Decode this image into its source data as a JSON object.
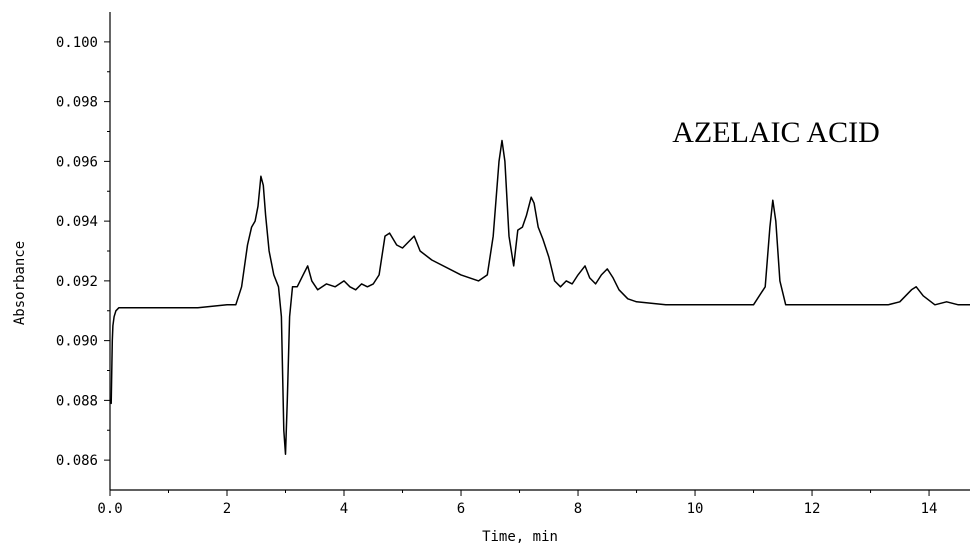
{
  "chart_data": {
    "type": "line",
    "title": "",
    "xlabel": "Time, min",
    "ylabel": "Absorbance",
    "annotation": "AZELAIC ACID",
    "xlim": [
      0.0,
      14.7
    ],
    "ylim": [
      0.085,
      0.101
    ],
    "x_ticks": [
      0,
      2,
      4,
      6,
      8,
      10,
      12,
      14
    ],
    "x_tick_labels": [
      "0.0",
      "2",
      "4",
      "6",
      "8",
      "10",
      "12",
      "14"
    ],
    "y_ticks": [
      0.086,
      0.088,
      0.09,
      0.092,
      0.094,
      0.096,
      0.098,
      0.1
    ],
    "y_tick_labels": [
      "0.086",
      "0.088",
      "0.090",
      "0.092",
      "0.094",
      "0.096",
      "0.098",
      "0.100"
    ],
    "grid": false,
    "line_color": "#000000",
    "series": [
      {
        "x": [
          0.0,
          0.02,
          0.04,
          0.05,
          0.07,
          0.1,
          0.15,
          0.25,
          0.5,
          1.0,
          1.5,
          2.0,
          2.15,
          2.25,
          2.35,
          2.42,
          2.48,
          2.53,
          2.58,
          2.62,
          2.66,
          2.72,
          2.8,
          2.88,
          2.93,
          2.97,
          3.0,
          3.03,
          3.07,
          3.12,
          3.2,
          3.3,
          3.38,
          3.45,
          3.55,
          3.7,
          3.85,
          4.0,
          4.1,
          4.2,
          4.3,
          4.4,
          4.5,
          4.6,
          4.7,
          4.78,
          4.9,
          5.0,
          5.1,
          5.2,
          5.3,
          5.5,
          6.0,
          6.3,
          6.45,
          6.55,
          6.65,
          6.7,
          6.75,
          6.82,
          6.9,
          6.97,
          7.05,
          7.12,
          7.2,
          7.25,
          7.32,
          7.4,
          7.5,
          7.6,
          7.7,
          7.8,
          7.9,
          8.0,
          8.12,
          8.2,
          8.3,
          8.4,
          8.5,
          8.6,
          8.7,
          8.85,
          9.0,
          9.5,
          10.0,
          10.5,
          11.0,
          11.2,
          11.28,
          11.33,
          11.38,
          11.45,
          11.55,
          11.7,
          12.0,
          12.5,
          13.0,
          13.3,
          13.5,
          13.7,
          13.78,
          13.9,
          14.1,
          14.3,
          14.5,
          14.7
        ],
        "y": [
          0.088,
          0.0879,
          0.09,
          0.0905,
          0.0908,
          0.091,
          0.0911,
          0.0911,
          0.0911,
          0.0911,
          0.0911,
          0.0912,
          0.0912,
          0.0918,
          0.0932,
          0.0938,
          0.094,
          0.0945,
          0.0955,
          0.0952,
          0.0942,
          0.093,
          0.0922,
          0.0918,
          0.0908,
          0.087,
          0.0862,
          0.088,
          0.0908,
          0.0918,
          0.0918,
          0.0922,
          0.0925,
          0.092,
          0.0917,
          0.0919,
          0.0918,
          0.092,
          0.0918,
          0.0917,
          0.0919,
          0.0918,
          0.0919,
          0.0922,
          0.0935,
          0.0936,
          0.0932,
          0.0931,
          0.0933,
          0.0935,
          0.093,
          0.0927,
          0.0922,
          0.092,
          0.0922,
          0.0935,
          0.096,
          0.0967,
          0.096,
          0.0935,
          0.0925,
          0.0937,
          0.0938,
          0.0942,
          0.0948,
          0.0946,
          0.0938,
          0.0934,
          0.0928,
          0.092,
          0.0918,
          0.092,
          0.0919,
          0.0922,
          0.0925,
          0.0921,
          0.0919,
          0.0922,
          0.0924,
          0.0921,
          0.0917,
          0.0914,
          0.0913,
          0.0912,
          0.0912,
          0.0912,
          0.0912,
          0.0918,
          0.0938,
          0.0947,
          0.094,
          0.092,
          0.0912,
          0.0912,
          0.0912,
          0.0912,
          0.0912,
          0.0912,
          0.0913,
          0.0917,
          0.0918,
          0.0915,
          0.0912,
          0.0913,
          0.0912,
          0.0912
        ]
      }
    ]
  }
}
